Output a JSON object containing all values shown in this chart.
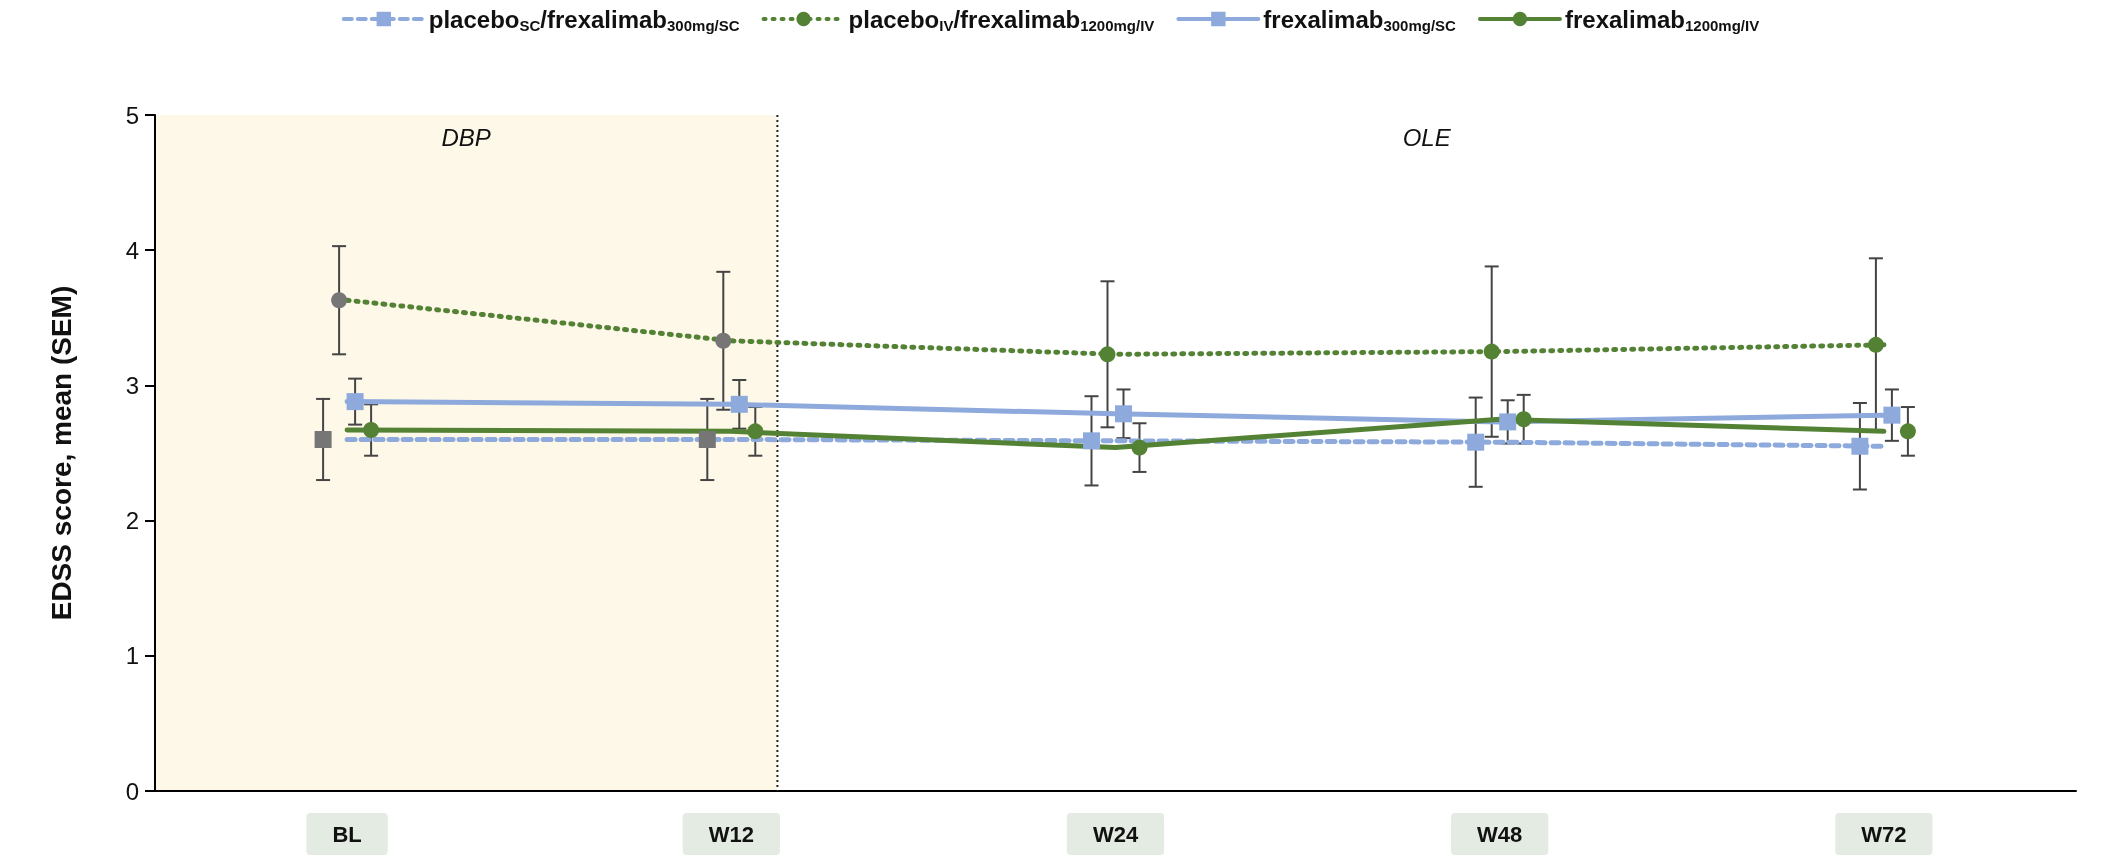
{
  "chart_data": {
    "type": "line",
    "ylabel": "EDSS score, mean (SEM)",
    "categories": [
      "BL",
      "W12",
      "W24",
      "W48",
      "W72"
    ],
    "ylim": [
      0,
      5
    ],
    "yticks": [
      0,
      1,
      2,
      3,
      4,
      5
    ],
    "grid": false,
    "legend": "top",
    "series": [
      {
        "name": "placebo$_{SC}$/frexalimab$_{300mg/SC}$",
        "color": "#8eaadc",
        "colors": [
          "#767676",
          "#767676",
          "#8eaadc",
          "#8eaadc",
          "#8eaadc"
        ],
        "marker": "square",
        "line_style": "dashed",
        "values": [
          2.6,
          2.6,
          2.59,
          2.58,
          2.55
        ],
        "errors": [
          0.3,
          0.3,
          0.33,
          0.33,
          0.32
        ]
      },
      {
        "name": "placebo$_{IV}$/frexalimab$_{1200mg/IV}$",
        "color": "#548235",
        "colors": [
          "#767676",
          "#767676",
          "#548235",
          "#548235",
          "#548235"
        ],
        "marker": "circle",
        "line_style": "dotted",
        "values": [
          3.63,
          3.33,
          3.23,
          3.25,
          3.3
        ],
        "errors": [
          0.4,
          0.51,
          0.54,
          0.63,
          0.64
        ]
      },
      {
        "name": "frexalimab$_{300mg/SC}$",
        "color": "#8eaadc",
        "marker": "square",
        "line_style": "solid",
        "values": [
          2.88,
          2.86,
          2.79,
          2.73,
          2.78
        ],
        "errors": [
          0.17,
          0.18,
          0.18,
          0.16,
          0.19
        ]
      },
      {
        "name": "frexalimab$_{1200mg/IV}$",
        "color": "#548235",
        "marker": "circle",
        "line_style": "solid",
        "values": [
          2.67,
          2.66,
          2.54,
          2.75,
          2.66
        ],
        "errors": [
          0.19,
          0.18,
          0.18,
          0.18,
          0.18
        ]
      }
    ],
    "bands": [
      {
        "axis": "x",
        "from": "BL",
        "to": "W12",
        "label": "DBP",
        "color": "#fef8e9"
      }
    ],
    "annotations": [
      "OLE"
    ],
    "ref_lines": [
      {
        "axis": "x",
        "value": "W12",
        "color": "#222222",
        "line_style": "dotted"
      }
    ]
  }
}
